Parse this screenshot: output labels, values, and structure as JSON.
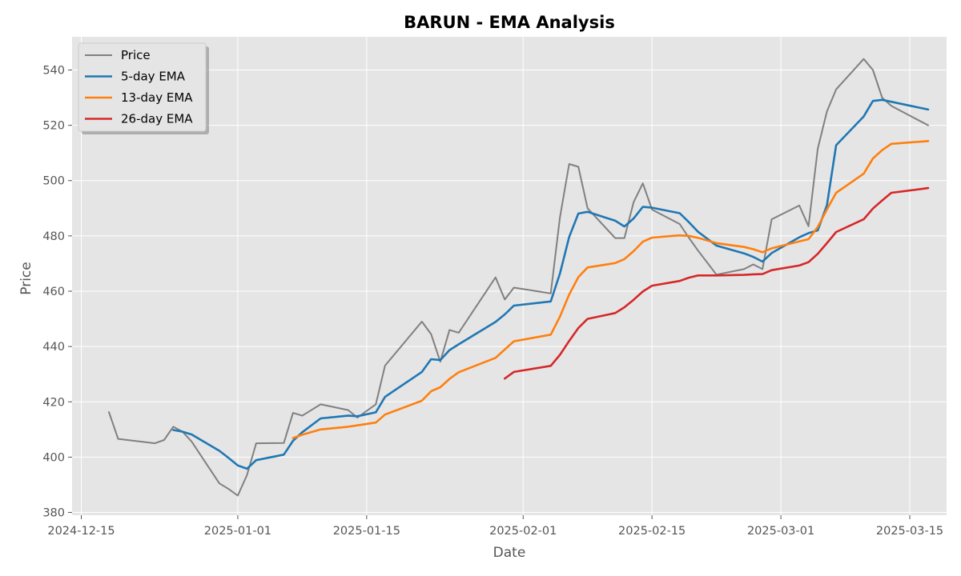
{
  "chart_data": {
    "type": "line",
    "title": "BARUN - EMA Analysis",
    "xlabel": "Date",
    "ylabel": "Price",
    "x_axis_type": "date",
    "xlim": [
      "2024-12-14",
      "2025-03-19"
    ],
    "ylim": [
      379,
      552
    ],
    "x_ticks": [
      "2024-12-15",
      "2025-01-01",
      "2025-01-15",
      "2025-02-01",
      "2025-02-15",
      "2025-03-01",
      "2025-03-15"
    ],
    "y_ticks": [
      380,
      400,
      420,
      440,
      460,
      480,
      500,
      520,
      540
    ],
    "grid": true,
    "legend_position": "top-left",
    "background": "#e5e5e5",
    "series": [
      {
        "name": "Price",
        "color": "#808080",
        "points": [
          [
            "2024-12-18",
            416.3
          ],
          [
            "2024-12-19",
            406.6
          ],
          [
            "2024-12-23",
            405.0
          ],
          [
            "2024-12-24",
            406.2
          ],
          [
            "2024-12-25",
            411.0
          ],
          [
            "2024-12-26",
            409.2
          ],
          [
            "2024-12-27",
            405.6
          ],
          [
            "2024-12-30",
            390.5
          ],
          [
            "2024-12-31",
            388.5
          ],
          [
            "2025-01-01",
            386.1
          ],
          [
            "2025-01-02",
            393.5
          ],
          [
            "2025-01-03",
            405.0
          ],
          [
            "2025-01-06",
            405.1
          ],
          [
            "2025-01-07",
            416.0
          ],
          [
            "2025-01-08",
            415.0
          ],
          [
            "2025-01-10",
            419.1
          ],
          [
            "2025-01-13",
            417.0
          ],
          [
            "2025-01-14",
            414.3
          ],
          [
            "2025-01-16",
            419.1
          ],
          [
            "2025-01-17",
            433.1
          ],
          [
            "2025-01-21",
            449.0
          ],
          [
            "2025-01-22",
            444.5
          ],
          [
            "2025-01-23",
            434.5
          ],
          [
            "2025-01-24",
            446.0
          ],
          [
            "2025-01-25",
            445.0
          ],
          [
            "2025-01-29",
            465.0
          ],
          [
            "2025-01-30",
            457.0
          ],
          [
            "2025-01-31",
            461.3
          ],
          [
            "2025-02-04",
            459.2
          ],
          [
            "2025-02-05",
            486.7
          ],
          [
            "2025-02-06",
            506.0
          ],
          [
            "2025-02-07",
            505.0
          ],
          [
            "2025-02-08",
            490.0
          ],
          [
            "2025-02-11",
            479.2
          ],
          [
            "2025-02-12",
            479.2
          ],
          [
            "2025-02-13",
            492.2
          ],
          [
            "2025-02-14",
            499.0
          ],
          [
            "2025-02-15",
            489.5
          ],
          [
            "2025-02-18",
            484.3
          ],
          [
            "2025-02-19",
            479.4
          ],
          [
            "2025-02-20",
            474.7
          ],
          [
            "2025-02-22",
            466.0
          ],
          [
            "2025-02-25",
            468.0
          ],
          [
            "2025-02-26",
            469.7
          ],
          [
            "2025-02-27",
            468.0
          ],
          [
            "2025-02-28",
            486.0
          ],
          [
            "2025-03-03",
            491.0
          ],
          [
            "2025-03-04",
            483.5
          ],
          [
            "2025-03-05",
            511.5
          ],
          [
            "2025-03-06",
            525.0
          ],
          [
            "2025-03-07",
            533.0
          ],
          [
            "2025-03-10",
            544.0
          ],
          [
            "2025-03-11",
            540.0
          ],
          [
            "2025-03-12",
            530.0
          ],
          [
            "2025-03-13",
            527.0
          ],
          [
            "2025-03-17",
            520.0
          ]
        ]
      },
      {
        "name": "5-day EMA",
        "color": "#1f77b4",
        "points": [
          [
            "2024-12-25",
            409.8
          ],
          [
            "2024-12-26",
            409.2
          ],
          [
            "2024-12-27",
            408.2
          ],
          [
            "2024-12-30",
            402.3
          ],
          [
            "2024-12-31",
            399.7
          ],
          [
            "2025-01-01",
            397.0
          ],
          [
            "2025-01-02",
            395.8
          ],
          [
            "2025-01-03",
            398.9
          ],
          [
            "2025-01-06",
            400.9
          ],
          [
            "2025-01-07",
            405.9
          ],
          [
            "2025-01-08",
            409.0
          ],
          [
            "2025-01-10",
            414.0
          ],
          [
            "2025-01-13",
            415.0
          ],
          [
            "2025-01-14",
            414.8
          ],
          [
            "2025-01-16",
            416.2
          ],
          [
            "2025-01-17",
            421.8
          ],
          [
            "2025-01-21",
            430.8
          ],
          [
            "2025-01-22",
            435.4
          ],
          [
            "2025-01-23",
            435.1
          ],
          [
            "2025-01-24",
            438.7
          ],
          [
            "2025-01-25",
            440.8
          ],
          [
            "2025-01-29",
            448.9
          ],
          [
            "2025-01-30",
            451.6
          ],
          [
            "2025-01-31",
            454.8
          ],
          [
            "2025-02-04",
            456.3
          ],
          [
            "2025-02-05",
            466.4
          ],
          [
            "2025-02-06",
            479.6
          ],
          [
            "2025-02-07",
            488.1
          ],
          [
            "2025-02-08",
            488.7
          ],
          [
            "2025-02-11",
            485.5
          ],
          [
            "2025-02-12",
            483.4
          ],
          [
            "2025-02-13",
            486.3
          ],
          [
            "2025-02-14",
            490.5
          ],
          [
            "2025-02-15",
            490.2
          ],
          [
            "2025-02-18",
            488.2
          ],
          [
            "2025-02-19",
            485.0
          ],
          [
            "2025-02-20",
            481.5
          ],
          [
            "2025-02-22",
            476.5
          ],
          [
            "2025-02-25",
            473.7
          ],
          [
            "2025-02-26",
            472.4
          ],
          [
            "2025-02-27",
            470.7
          ],
          [
            "2025-02-28",
            473.8
          ],
          [
            "2025-03-03",
            479.5
          ],
          [
            "2025-03-04",
            481.0
          ],
          [
            "2025-03-05",
            482.0
          ],
          [
            "2025-03-06",
            491.1
          ],
          [
            "2025-03-07",
            512.8
          ],
          [
            "2025-03-10",
            523.2
          ],
          [
            "2025-03-11",
            528.8
          ],
          [
            "2025-03-12",
            529.2
          ],
          [
            "2025-03-13",
            528.5
          ],
          [
            "2025-03-17",
            525.7
          ]
        ]
      },
      {
        "name": "13-day EMA",
        "color": "#ff7f0e",
        "points": [
          [
            "2025-01-07",
            406.9
          ],
          [
            "2025-01-08",
            408.1
          ],
          [
            "2025-01-10",
            410.0
          ],
          [
            "2025-01-13",
            411.0
          ],
          [
            "2025-01-14",
            411.5
          ],
          [
            "2025-01-16",
            412.5
          ],
          [
            "2025-01-17",
            415.4
          ],
          [
            "2025-01-21",
            420.4
          ],
          [
            "2025-01-22",
            423.8
          ],
          [
            "2025-01-23",
            425.3
          ],
          [
            "2025-01-24",
            428.3
          ],
          [
            "2025-01-25",
            430.7
          ],
          [
            "2025-01-29",
            435.9
          ],
          [
            "2025-01-30",
            438.9
          ],
          [
            "2025-01-31",
            441.9
          ],
          [
            "2025-02-04",
            444.3
          ],
          [
            "2025-02-05",
            450.8
          ],
          [
            "2025-02-06",
            458.8
          ],
          [
            "2025-02-07",
            465.1
          ],
          [
            "2025-02-08",
            468.6
          ],
          [
            "2025-02-11",
            470.2
          ],
          [
            "2025-02-12",
            471.6
          ],
          [
            "2025-02-13",
            474.5
          ],
          [
            "2025-02-14",
            477.9
          ],
          [
            "2025-02-15",
            479.4
          ],
          [
            "2025-02-18",
            480.2
          ],
          [
            "2025-02-19",
            480.0
          ],
          [
            "2025-02-20",
            479.3
          ],
          [
            "2025-02-22",
            477.4
          ],
          [
            "2025-02-25",
            476.0
          ],
          [
            "2025-02-26",
            475.2
          ],
          [
            "2025-02-27",
            474.1
          ],
          [
            "2025-02-28",
            475.5
          ],
          [
            "2025-03-03",
            478.0
          ],
          [
            "2025-03-04",
            478.8
          ],
          [
            "2025-03-05",
            483.2
          ],
          [
            "2025-03-06",
            489.6
          ],
          [
            "2025-03-07",
            495.6
          ],
          [
            "2025-03-10",
            502.5
          ],
          [
            "2025-03-11",
            508.0
          ],
          [
            "2025-03-12",
            511.0
          ],
          [
            "2025-03-13",
            513.3
          ],
          [
            "2025-03-17",
            514.3
          ]
        ]
      },
      {
        "name": "26-day EMA",
        "color": "#d62728",
        "points": [
          [
            "2025-01-30",
            428.4
          ],
          [
            "2025-01-31",
            430.8
          ],
          [
            "2025-02-04",
            433.0
          ],
          [
            "2025-02-05",
            437.0
          ],
          [
            "2025-02-06",
            442.0
          ],
          [
            "2025-02-07",
            446.7
          ],
          [
            "2025-02-08",
            450.0
          ],
          [
            "2025-02-11",
            452.1
          ],
          [
            "2025-02-12",
            454.2
          ],
          [
            "2025-02-13",
            456.9
          ],
          [
            "2025-02-14",
            459.9
          ],
          [
            "2025-02-15",
            462.0
          ],
          [
            "2025-02-18",
            463.7
          ],
          [
            "2025-02-19",
            464.9
          ],
          [
            "2025-02-20",
            465.7
          ],
          [
            "2025-02-22",
            465.7
          ],
          [
            "2025-02-25",
            465.9
          ],
          [
            "2025-02-26",
            466.1
          ],
          [
            "2025-02-27",
            466.2
          ],
          [
            "2025-02-28",
            467.6
          ],
          [
            "2025-03-03",
            469.3
          ],
          [
            "2025-03-04",
            470.5
          ],
          [
            "2025-03-05",
            473.5
          ],
          [
            "2025-03-06",
            477.4
          ],
          [
            "2025-03-07",
            481.4
          ],
          [
            "2025-03-10",
            486.0
          ],
          [
            "2025-03-11",
            489.9
          ],
          [
            "2025-03-12",
            492.8
          ],
          [
            "2025-03-13",
            495.6
          ],
          [
            "2025-03-17",
            497.3
          ]
        ]
      }
    ]
  }
}
